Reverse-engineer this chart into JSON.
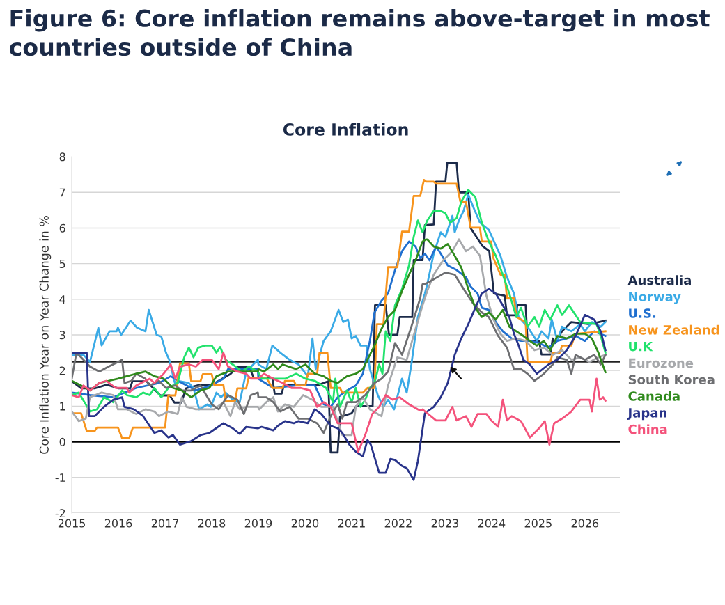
{
  "chart_data": {
    "type": "line",
    "title": "Figure 6: Core inflation remains above-target in most countries outside of China",
    "subtitle": "Core Inflation",
    "ylabel": "Core Inflation Year on Year Change in %",
    "xlim": [
      2015,
      2026.75
    ],
    "xticks": [
      2015,
      2016,
      2017,
      2018,
      2019,
      2020,
      2021,
      2022,
      2023,
      2024,
      2025,
      2026
    ],
    "ylim": [
      -2,
      8
    ],
    "yticks": [
      -2,
      -1,
      0,
      1,
      2,
      3,
      4,
      5,
      6,
      7,
      8
    ],
    "grid": "y",
    "legend": "right",
    "marker": "none",
    "line_style": "solid",
    "ref_lines": [
      {
        "axis": "y",
        "value": 0,
        "color": "#000000",
        "line_style": "solid"
      },
      {
        "axis": "y",
        "value": 2.25,
        "color": "#222222",
        "line_style": "solid"
      }
    ],
    "series": [
      {
        "name": "Australia",
        "color": "#1c2b4a",
        "x": [
          2015,
          2015.2,
          2015.5,
          2015.75,
          2016,
          2016.25,
          2016.3,
          2016.6,
          2016.75,
          2016.9,
          2017.1,
          2017.2,
          2017.35,
          2017.45,
          2017.75,
          2018.0,
          2018.4,
          2018.55,
          2018.8,
          2018.9,
          2019.3,
          2019.35,
          2019.5,
          2019.55,
          2020.3,
          2020.5,
          2020.55,
          2020.7,
          2020.75,
          2021.0,
          2021.1,
          2021.45,
          2021.5,
          2021.73,
          2021.8,
          2021.98,
          2022.03,
          2022.3,
          2022.33,
          2022.52,
          2022.57,
          2022.76,
          2022.81,
          2023.01,
          2023.05,
          2023.25,
          2023.3,
          2023.5,
          2023.55,
          2023.8,
          2023.95,
          2024.05,
          2024.28,
          2024.33,
          2024.53,
          2024.55,
          2024.73,
          2024.77,
          2025.02,
          2025.07,
          2025.26,
          2025.31,
          2025.36,
          2025.51,
          2025.71,
          2026.1,
          2026.44
        ],
        "values": [
          1.7,
          1.5,
          1.5,
          1.6,
          1.5,
          1.5,
          1.7,
          1.7,
          1.5,
          1.3,
          1.3,
          1.1,
          1.1,
          1.5,
          1.6,
          1.6,
          1.9,
          2.1,
          2.1,
          1.8,
          1.8,
          1.35,
          1.35,
          1.6,
          1.6,
          1.7,
          -0.3,
          -0.3,
          0.7,
          0.8,
          1.0,
          1.0,
          3.83,
          3.83,
          3.0,
          3.0,
          3.5,
          3.5,
          5.1,
          5.1,
          6.08,
          6.1,
          7.3,
          7.3,
          7.83,
          7.83,
          7.0,
          7.0,
          6.0,
          5.5,
          5.35,
          4.16,
          4.1,
          3.55,
          3.55,
          3.83,
          3.83,
          2.83,
          2.83,
          2.45,
          2.45,
          2.9,
          2.77,
          3.1,
          3.36,
          3.3,
          3.4
        ]
      },
      {
        "name": "Norway",
        "color": "#3aaae6",
        "x": [
          2015,
          2015.25,
          2015.39,
          2015.57,
          2015.64,
          2015.81,
          2015.96,
          2015.99,
          2016.06,
          2016.26,
          2016.4,
          2016.58,
          2016.65,
          2016.82,
          2016.92,
          2017.02,
          2017.09,
          2017.22,
          2017.32,
          2017.51,
          2017.61,
          2017.73,
          2017.91,
          2017.98,
          2018.1,
          2018.2,
          2018.3,
          2018.45,
          2018.6,
          2018.74,
          2018.99,
          2019.0,
          2019.17,
          2019.3,
          2019.47,
          2019.67,
          2019.86,
          2020.06,
          2020.16,
          2020.23,
          2020.4,
          2020.55,
          2020.72,
          2020.82,
          2020.92,
          2021.0,
          2021.09,
          2021.19,
          2021.32,
          2021.39,
          2021.56,
          2021.68,
          2021.78,
          2021.91,
          2022.08,
          2022.18,
          2022.28,
          2022.42,
          2022.57,
          2022.62,
          2022.76,
          2022.91,
          2023.01,
          2023.16,
          2023.21,
          2023.3,
          2023.4,
          2023.5,
          2023.6,
          2023.75,
          2023.94,
          2024.19,
          2024.33,
          2024.48,
          2024.58,
          2024.77,
          2024.87,
          2024.97,
          2025.07,
          2025.22,
          2025.29,
          2025.41,
          2025.51,
          2025.71,
          2025.9,
          2026.0,
          2026.15,
          2026.34,
          2026.44
        ],
        "values": [
          2.44,
          2.44,
          2.24,
          3.2,
          2.7,
          3.1,
          3.1,
          3.2,
          3.0,
          3.4,
          3.2,
          3.1,
          3.7,
          3.0,
          2.95,
          2.5,
          2.3,
          1.6,
          1.7,
          1.65,
          1.5,
          0.91,
          1.05,
          0.98,
          1.38,
          1.25,
          1.38,
          1.18,
          1.11,
          1.97,
          2.3,
          2.17,
          2.04,
          2.7,
          2.5,
          2.3,
          2.17,
          1.84,
          2.9,
          2.04,
          2.83,
          3.1,
          3.7,
          3.36,
          3.43,
          2.9,
          2.97,
          2.7,
          2.7,
          2.04,
          1.31,
          0.98,
          1.18,
          0.91,
          1.77,
          1.38,
          2.17,
          3.5,
          4.16,
          4.42,
          5.28,
          5.88,
          5.75,
          6.34,
          5.88,
          6.21,
          6.48,
          6.94,
          6.61,
          6.15,
          5.95,
          5.22,
          4.62,
          4.16,
          3.5,
          3.23,
          3.03,
          2.83,
          3.1,
          2.9,
          3.43,
          2.83,
          3.23,
          3.1,
          3.3,
          3.1,
          3.36,
          3.23,
          3.36
        ]
      },
      {
        "name": "U.S.",
        "color": "#1f6fcf",
        "x": [
          2015,
          2015.39,
          2015.89,
          2016.38,
          2016.87,
          2017.12,
          2017.36,
          2017.66,
          2017.98,
          2018.25,
          2018.35,
          2018.99,
          2019.0,
          2019.32,
          2019.81,
          2020.21,
          2020.4,
          2020.55,
          2020.7,
          2020.9,
          2021.09,
          2021.24,
          2021.39,
          2021.49,
          2021.64,
          2021.78,
          2021.93,
          2022.08,
          2022.23,
          2022.37,
          2022.47,
          2022.57,
          2022.67,
          2022.81,
          2022.91,
          2023.06,
          2023.25,
          2023.45,
          2023.55,
          2023.7,
          2023.79,
          2023.94,
          2024.09,
          2024.24,
          2024.43,
          2024.63,
          2024.82,
          2025.02,
          2025.22,
          2025.41,
          2025.61,
          2025.8,
          2026.0,
          2026.2,
          2026.44
        ],
        "values": [
          1.38,
          1.31,
          1.25,
          1.51,
          1.65,
          1.84,
          1.65,
          1.44,
          1.58,
          1.77,
          2.04,
          2.04,
          1.77,
          1.51,
          1.58,
          1.58,
          1.05,
          0.98,
          1.25,
          1.44,
          1.58,
          1.91,
          2.83,
          3.63,
          3.96,
          4.16,
          4.82,
          5.35,
          5.62,
          5.48,
          5.15,
          5.28,
          5.09,
          5.48,
          5.28,
          4.95,
          4.82,
          4.62,
          4.36,
          4.16,
          3.76,
          3.7,
          3.36,
          3.1,
          2.9,
          2.83,
          2.83,
          2.77,
          2.64,
          2.83,
          2.9,
          2.97,
          2.83,
          3.1,
          2.97
        ]
      },
      {
        "name": "New Zealand",
        "color": "#f7941d",
        "x": [
          2015,
          2015.2,
          2015.32,
          2015.49,
          2015.54,
          2015.99,
          2016.08,
          2016.23,
          2016.31,
          2017.0,
          2017.07,
          2017.22,
          2017.32,
          2017.51,
          2017.56,
          2017.76,
          2017.81,
          2018.0,
          2018.05,
          2018.25,
          2018.3,
          2018.5,
          2018.55,
          2018.74,
          2018.79,
          2019.17,
          2019.3,
          2019.52,
          2019.57,
          2019.76,
          2019.81,
          2020.01,
          2020.06,
          2020.26,
          2020.31,
          2020.48,
          2020.55,
          2020.75,
          2020.8,
          2021.24,
          2021.34,
          2021.49,
          2021.54,
          2021.68,
          2021.78,
          2021.98,
          2022.08,
          2022.23,
          2022.33,
          2022.47,
          2022.55,
          2022.6,
          2022.76,
          2022.81,
          2023.25,
          2023.33,
          2023.45,
          2023.55,
          2023.75,
          2023.79,
          2023.99,
          2024.04,
          2024.19,
          2024.28,
          2024.33,
          2024.48,
          2024.53,
          2024.73,
          2024.77,
          2025.26,
          2025.31,
          2025.46,
          2025.51,
          2025.71,
          2025.8,
          2026.44
        ],
        "values": [
          0.8,
          0.8,
          0.3,
          0.3,
          0.4,
          0.4,
          0.1,
          0.1,
          0.4,
          0.4,
          1.3,
          1.3,
          2.2,
          2.2,
          1.7,
          1.7,
          1.9,
          1.9,
          1.6,
          1.6,
          1.15,
          1.15,
          1.5,
          1.5,
          1.8,
          1.8,
          1.51,
          1.51,
          1.71,
          1.71,
          1.58,
          1.58,
          1.91,
          1.91,
          2.5,
          2.5,
          1.51,
          1.51,
          1.38,
          1.38,
          1.51,
          1.51,
          3.3,
          3.3,
          4.9,
          4.9,
          5.9,
          5.9,
          6.9,
          6.9,
          7.35,
          7.3,
          7.3,
          7.24,
          7.24,
          6.74,
          6.74,
          6.01,
          6.01,
          5.62,
          5.62,
          5.15,
          4.69,
          4.69,
          4.03,
          4.03,
          3.5,
          3.36,
          2.24,
          2.24,
          2.5,
          2.5,
          2.7,
          2.7,
          3.03,
          3.1
        ]
      },
      {
        "name": "U.K",
        "color": "#21e26c",
        "x": [
          2015,
          2015.15,
          2015.39,
          2015.54,
          2015.69,
          2015.89,
          2016.08,
          2016.18,
          2016.38,
          2016.53,
          2016.67,
          2016.77,
          2016.92,
          2017.07,
          2017.27,
          2017.41,
          2017.51,
          2017.61,
          2017.71,
          2017.86,
          2018.0,
          2018.1,
          2018.18,
          2018.3,
          2018.45,
          2018.65,
          2018.79,
          2018.99,
          2019.07,
          2019.32,
          2019.57,
          2019.81,
          2020.01,
          2020.21,
          2020.45,
          2020.6,
          2020.65,
          2020.75,
          2020.9,
          2021.0,
          2021.09,
          2021.19,
          2021.29,
          2021.39,
          2021.49,
          2021.59,
          2021.66,
          2021.73,
          2021.83,
          2021.93,
          2022.08,
          2022.23,
          2022.33,
          2022.42,
          2022.52,
          2022.62,
          2022.76,
          2022.91,
          2023.01,
          2023.11,
          2023.25,
          2023.35,
          2023.5,
          2023.65,
          2023.79,
          2023.94,
          2024.09,
          2024.24,
          2024.38,
          2024.53,
          2024.63,
          2024.77,
          2024.92,
          2025.02,
          2025.14,
          2025.26,
          2025.41,
          2025.51,
          2025.66,
          2025.9,
          2026.25,
          2026.34,
          2026.44
        ],
        "values": [
          1.31,
          1.38,
          0.85,
          0.91,
          1.25,
          1.11,
          1.44,
          1.31,
          1.25,
          1.38,
          1.31,
          1.51,
          1.25,
          1.51,
          1.65,
          2.37,
          2.64,
          2.37,
          2.64,
          2.7,
          2.7,
          2.5,
          2.66,
          2.3,
          2.17,
          1.97,
          2.11,
          1.97,
          1.77,
          1.77,
          1.77,
          1.91,
          1.77,
          1.71,
          1.51,
          1.11,
          1.77,
          0.98,
          1.44,
          1.11,
          1.51,
          0.98,
          1.18,
          1.51,
          1.65,
          2.17,
          1.91,
          3.1,
          2.83,
          3.83,
          4.29,
          4.95,
          5.75,
          6.21,
          5.88,
          6.21,
          6.48,
          6.48,
          6.41,
          6.15,
          6.28,
          6.74,
          7.07,
          6.87,
          6.15,
          5.62,
          5.22,
          4.69,
          4.16,
          3.5,
          3.76,
          3.23,
          3.5,
          3.23,
          3.7,
          3.43,
          3.83,
          3.56,
          3.83,
          3.36,
          3.3,
          2.97,
          2.5
        ]
      },
      {
        "name": "Eurozone",
        "color": "#a7a9ac",
        "x": [
          2015,
          2015.15,
          2015.3,
          2015.39,
          2015.64,
          2015.89,
          2015.99,
          2016.18,
          2016.38,
          2016.58,
          2016.77,
          2016.87,
          2017.07,
          2017.27,
          2017.36,
          2017.46,
          2017.66,
          2017.86,
          2018.05,
          2018.25,
          2018.4,
          2018.5,
          2018.6,
          2018.74,
          2018.99,
          2019.02,
          2019.17,
          2019.32,
          2019.42,
          2019.57,
          2019.76,
          2019.96,
          2020.16,
          2020.35,
          2020.6,
          2020.8,
          2021.0,
          2021.09,
          2021.24,
          2021.39,
          2021.64,
          2021.78,
          2021.98,
          2022.18,
          2022.37,
          2022.52,
          2022.62,
          2022.76,
          2022.96,
          2023.16,
          2023.3,
          2023.45,
          2023.6,
          2023.75,
          2023.89,
          2024.04,
          2024.19,
          2024.33,
          2024.53,
          2024.73,
          2024.92,
          2025.12,
          2025.31,
          2025.51,
          2025.71,
          2025.9,
          2026.1,
          2026.29,
          2026.44
        ],
        "values": [
          0.85,
          0.58,
          0.65,
          1.25,
          1.38,
          1.31,
          0.91,
          0.91,
          0.78,
          0.91,
          0.85,
          0.72,
          0.85,
          0.78,
          1.25,
          0.98,
          0.91,
          0.91,
          0.91,
          1.11,
          0.72,
          1.11,
          0.91,
          0.98,
          0.98,
          0.91,
          1.11,
          1.25,
          0.85,
          1.05,
          0.98,
          1.31,
          1.18,
          0.98,
          0.98,
          0.19,
          0.19,
          0.98,
          1.25,
          0.91,
          0.72,
          1.58,
          2.37,
          2.3,
          3.17,
          3.83,
          4.23,
          4.69,
          5.09,
          5.35,
          5.68,
          5.35,
          5.48,
          5.22,
          4.09,
          3.43,
          3.03,
          2.83,
          2.9,
          2.83,
          2.57,
          2.64,
          2.44,
          2.57,
          2.3,
          2.37,
          2.24,
          2.37,
          2.44
        ]
      },
      {
        "name": "South Korea",
        "color": "#6d6e71",
        "x": [
          2015,
          2015.1,
          2015.2,
          2015.39,
          2015.59,
          2015.79,
          2015.99,
          2016.08,
          2016.13,
          2016.28,
          2016.38,
          2016.58,
          2016.67,
          2016.87,
          2017.02,
          2017.22,
          2017.36,
          2017.56,
          2017.76,
          2018.0,
          2018.15,
          2018.35,
          2018.55,
          2018.69,
          2018.84,
          2018.99,
          2019.0,
          2019.17,
          2019.32,
          2019.47,
          2019.67,
          2019.86,
          2020.06,
          2020.26,
          2020.4,
          2020.55,
          2020.7,
          2020.8,
          2020.9,
          2021.09,
          2021.29,
          2021.49,
          2021.64,
          2021.78,
          2021.93,
          2022.08,
          2022.28,
          2022.47,
          2022.52,
          2022.57,
          2022.76,
          2023.01,
          2023.21,
          2023.4,
          2023.6,
          2023.79,
          2023.94,
          2024.14,
          2024.33,
          2024.48,
          2024.63,
          2024.77,
          2024.92,
          2025.12,
          2025.31,
          2025.41,
          2025.61,
          2025.71,
          2025.8,
          2026.0,
          2026.2,
          2026.34,
          2026.44
        ],
        "values": [
          1.77,
          2.5,
          2.37,
          2.11,
          1.97,
          2.11,
          2.24,
          2.3,
          1.65,
          1.71,
          1.91,
          1.77,
          1.58,
          1.71,
          1.51,
          1.58,
          1.44,
          1.44,
          1.58,
          1.05,
          0.91,
          1.31,
          1.18,
          0.78,
          1.31,
          1.38,
          1.25,
          1.25,
          1.11,
          0.85,
          0.98,
          0.65,
          0.65,
          0.52,
          0.25,
          0.72,
          1.05,
          0.65,
          1.11,
          1.11,
          1.31,
          1.65,
          1.77,
          1.97,
          2.77,
          2.44,
          3.23,
          4.03,
          4.42,
          4.42,
          4.56,
          4.75,
          4.69,
          4.29,
          3.89,
          3.63,
          3.5,
          2.97,
          2.64,
          2.04,
          2.04,
          1.91,
          1.71,
          1.91,
          2.17,
          2.37,
          2.3,
          1.91,
          2.44,
          2.3,
          2.44,
          2.17,
          2.44
        ]
      },
      {
        "name": "Canada",
        "color": "#2f8a1c",
        "x": [
          2015,
          2015.2,
          2015.39,
          2015.59,
          2015.79,
          2015.99,
          2016.18,
          2016.38,
          2016.58,
          2016.77,
          2016.97,
          2017.17,
          2017.36,
          2017.56,
          2017.76,
          2017.95,
          2018.1,
          2018.35,
          2018.65,
          2018.99,
          2019.0,
          2019.12,
          2019.32,
          2019.42,
          2019.52,
          2019.81,
          2020.01,
          2020.21,
          2020.4,
          2020.55,
          2020.7,
          2020.9,
          2021.09,
          2021.24,
          2021.39,
          2021.49,
          2021.64,
          2021.78,
          2021.93,
          2022.08,
          2022.23,
          2022.37,
          2022.52,
          2022.6,
          2022.62,
          2022.76,
          2022.91,
          2023.06,
          2023.21,
          2023.35,
          2023.5,
          2023.65,
          2023.79,
          2023.94,
          2024.09,
          2024.24,
          2024.38,
          2024.53,
          2024.68,
          2024.82,
          2024.97,
          2025.12,
          2025.26,
          2025.41,
          2025.61,
          2025.8,
          2026.0,
          2026.15,
          2026.29,
          2026.44
        ],
        "values": [
          1.71,
          1.58,
          1.44,
          1.65,
          1.71,
          1.77,
          1.84,
          1.91,
          1.97,
          1.84,
          1.77,
          1.51,
          1.44,
          1.25,
          1.44,
          1.51,
          1.84,
          1.97,
          1.97,
          1.97,
          2.04,
          1.97,
          2.17,
          2.04,
          2.17,
          2.04,
          2.17,
          1.91,
          1.84,
          1.71,
          1.65,
          1.84,
          1.91,
          2.04,
          2.44,
          2.7,
          3.17,
          3.5,
          3.7,
          4.23,
          4.69,
          5.09,
          5.62,
          5.68,
          5.68,
          5.48,
          5.42,
          5.55,
          5.22,
          4.89,
          4.29,
          3.76,
          3.5,
          3.63,
          3.43,
          3.7,
          3.23,
          3.1,
          2.97,
          2.83,
          2.7,
          2.83,
          2.57,
          2.97,
          2.9,
          3.03,
          3.03,
          2.9,
          2.5,
          1.95
        ]
      },
      {
        "name": "Japan",
        "color": "#28338a",
        "x": [
          2015,
          2015.32,
          2015.37,
          2015.49,
          2015.69,
          2015.89,
          2016.08,
          2016.13,
          2016.33,
          2016.53,
          2016.77,
          2016.92,
          2017.07,
          2017.17,
          2017.32,
          2017.56,
          2017.76,
          2017.95,
          2018.25,
          2018.45,
          2018.6,
          2018.74,
          2018.99,
          2019.07,
          2019.32,
          2019.42,
          2019.57,
          2019.76,
          2019.86,
          2020.06,
          2020.21,
          2020.35,
          2020.55,
          2020.7,
          2020.8,
          2020.95,
          2021.09,
          2021.24,
          2021.34,
          2021.41,
          2021.59,
          2021.73,
          2021.83,
          2021.93,
          2022.08,
          2022.18,
          2022.33,
          2022.42,
          2022.57,
          2022.62,
          2022.76,
          2022.91,
          2023.06,
          2023.21,
          2023.35,
          2023.5,
          2023.65,
          2023.79,
          2023.94,
          2024.09,
          2024.24,
          2024.38,
          2024.48,
          2024.58,
          2024.68,
          2024.82,
          2024.97,
          2025.22,
          2025.41,
          2025.61,
          2025.8,
          2026.0,
          2026.2,
          2026.34,
          2026.44
        ],
        "values": [
          2.5,
          2.5,
          0.72,
          0.72,
          0.98,
          1.18,
          1.25,
          0.98,
          0.91,
          0.72,
          0.25,
          0.32,
          0.12,
          0.19,
          -0.08,
          0.02,
          0.19,
          0.25,
          0.52,
          0.38,
          0.22,
          0.42,
          0.38,
          0.42,
          0.32,
          0.45,
          0.58,
          0.52,
          0.58,
          0.52,
          0.91,
          0.78,
          0.45,
          0.38,
          0.25,
          -0.08,
          -0.28,
          -0.41,
          0.05,
          -0.08,
          -0.87,
          -0.87,
          -0.48,
          -0.51,
          -0.68,
          -0.74,
          -1.07,
          -0.54,
          0.8,
          0.85,
          0.98,
          1.25,
          1.65,
          2.44,
          2.9,
          3.3,
          3.76,
          4.16,
          4.29,
          4.16,
          3.83,
          3.5,
          3.03,
          2.7,
          2.3,
          2.17,
          1.91,
          2.17,
          2.3,
          2.57,
          2.97,
          3.56,
          3.43,
          3.1,
          2.57
        ]
      },
      {
        "name": "China",
        "color": "#f4527b",
        "x": [
          2015,
          2015.15,
          2015.25,
          2015.39,
          2015.59,
          2015.74,
          2015.94,
          2016.18,
          2016.23,
          2016.38,
          2016.58,
          2016.67,
          2016.77,
          2016.97,
          2017.12,
          2017.22,
          2017.32,
          2017.51,
          2017.66,
          2017.81,
          2018.0,
          2018.15,
          2018.25,
          2018.35,
          2018.55,
          2018.74,
          2018.84,
          2018.99,
          2019.0,
          2019.12,
          2019.32,
          2019.52,
          2019.71,
          2019.91,
          2020.11,
          2020.26,
          2020.4,
          2020.55,
          2020.7,
          2021.0,
          2021.14,
          2021.29,
          2021.44,
          2021.59,
          2021.73,
          2021.88,
          2022.03,
          2022.23,
          2022.42,
          2022.47,
          2022.52,
          2022.81,
          2023.01,
          2023.16,
          2023.25,
          2023.45,
          2023.57,
          2023.7,
          2023.89,
          2023.99,
          2024.14,
          2024.24,
          2024.33,
          2024.43,
          2024.63,
          2024.82,
          2025.02,
          2025.14,
          2025.24,
          2025.34,
          2025.51,
          2025.71,
          2025.9,
          2026.1,
          2026.15,
          2026.25,
          2026.32,
          2026.39,
          2026.44
        ],
        "values": [
          1.31,
          1.25,
          1.58,
          1.44,
          1.65,
          1.71,
          1.51,
          1.51,
          1.38,
          1.58,
          1.71,
          1.77,
          1.65,
          1.91,
          2.17,
          1.77,
          2.11,
          2.17,
          2.11,
          2.3,
          2.3,
          2.04,
          2.5,
          2.11,
          1.97,
          1.91,
          1.77,
          1.77,
          1.77,
          1.91,
          1.77,
          1.65,
          1.51,
          1.51,
          1.44,
          0.98,
          1.11,
          0.98,
          0.52,
          0.52,
          -0.28,
          0.19,
          0.78,
          0.98,
          1.31,
          1.18,
          1.25,
          1.05,
          0.91,
          0.88,
          0.91,
          0.6,
          0.6,
          0.98,
          0.6,
          0.72,
          0.42,
          0.78,
          0.78,
          0.6,
          0.42,
          1.18,
          0.6,
          0.72,
          0.58,
          0.12,
          0.38,
          0.58,
          -0.08,
          0.52,
          0.65,
          0.85,
          1.18,
          1.18,
          0.85,
          1.77,
          1.18,
          1.25,
          1.15
        ]
      }
    ]
  }
}
